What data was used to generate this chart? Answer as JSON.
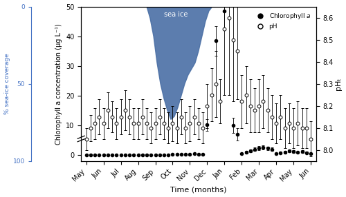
{
  "months": [
    "May",
    "Jun",
    "Jul",
    "Aug",
    "Sep",
    "Oct",
    "Nov",
    "Dec",
    "Jan",
    "Feb",
    "Mar",
    "Apr",
    "May",
    "Jun"
  ],
  "month_x": [
    0,
    1,
    2,
    3,
    4,
    5,
    6,
    7,
    8,
    9,
    10,
    11,
    12,
    13
  ],
  "chl_x": [
    0,
    0.25,
    0.5,
    0.75,
    1.0,
    1.25,
    1.5,
    1.75,
    2.0,
    2.25,
    2.5,
    2.75,
    3.0,
    3.25,
    3.5,
    3.75,
    4.0,
    4.25,
    4.5,
    4.75,
    5.0,
    5.25,
    5.5,
    5.75,
    6.0,
    6.25,
    6.5,
    6.75,
    7.0,
    7.5,
    8.0,
    8.5,
    8.75,
    9.0,
    9.25,
    9.5,
    9.75,
    10.0,
    10.25,
    10.5,
    10.75,
    11.0,
    11.25,
    11.5,
    11.75,
    12.0,
    12.25,
    12.5,
    12.75,
    13.0
  ],
  "chl_y": [
    0.1,
    0.1,
    0.1,
    0.1,
    0.1,
    0.1,
    0.1,
    0.1,
    0.1,
    0.1,
    0.1,
    0.1,
    0.1,
    0.1,
    0.1,
    0.1,
    0.1,
    0.1,
    0.1,
    0.1,
    0.2,
    0.2,
    0.3,
    0.2,
    0.3,
    0.5,
    0.3,
    0.2,
    10.2,
    38.5,
    48.5,
    10.0,
    7.0,
    0.5,
    1.0,
    1.5,
    2.0,
    2.3,
    2.5,
    2.3,
    2.0,
    0.5,
    0.8,
    1.0,
    1.5,
    1.2,
    1.0,
    1.2,
    0.8,
    0.5
  ],
  "chl_err": [
    0.05,
    0.05,
    0.05,
    0.05,
    0.05,
    0.05,
    0.05,
    0.05,
    0.05,
    0.05,
    0.05,
    0.05,
    0.05,
    0.05,
    0.05,
    0.05,
    0.05,
    0.05,
    0.05,
    0.05,
    0.1,
    0.1,
    0.15,
    0.1,
    0.15,
    0.2,
    0.15,
    0.1,
    2.0,
    5.0,
    6.0,
    2.5,
    2.0,
    0.3,
    0.4,
    0.5,
    0.6,
    0.7,
    0.7,
    0.6,
    0.5,
    0.2,
    0.3,
    0.4,
    0.5,
    0.4,
    0.3,
    0.4,
    0.3,
    0.2
  ],
  "ph_x": [
    0,
    0.25,
    0.5,
    0.75,
    1.0,
    1.25,
    1.5,
    1.75,
    2.0,
    2.25,
    2.5,
    2.75,
    3.0,
    3.25,
    3.5,
    3.75,
    4.0,
    4.25,
    4.5,
    4.75,
    5.0,
    5.25,
    5.5,
    5.75,
    6.0,
    6.25,
    6.5,
    6.75,
    7.0,
    7.25,
    7.5,
    7.75,
    8.0,
    8.25,
    8.5,
    8.75,
    9.0,
    9.25,
    9.5,
    9.75,
    10.0,
    10.25,
    10.5,
    10.75,
    11.0,
    11.25,
    11.5,
    11.75,
    12.0,
    12.25,
    12.5,
    12.75,
    13.0
  ],
  "ph_y": [
    8.05,
    8.1,
    8.12,
    8.15,
    8.12,
    8.18,
    8.15,
    8.12,
    8.15,
    8.18,
    8.15,
    8.12,
    8.12,
    8.15,
    8.12,
    8.1,
    8.12,
    8.15,
    8.12,
    8.1,
    8.12,
    8.1,
    8.15,
    8.1,
    8.12,
    8.15,
    8.12,
    8.1,
    8.2,
    8.25,
    8.3,
    8.22,
    8.55,
    8.6,
    8.5,
    8.45,
    8.22,
    8.25,
    8.2,
    8.18,
    8.2,
    8.22,
    8.18,
    8.15,
    8.12,
    8.15,
    8.1,
    8.12,
    8.1,
    8.12,
    8.1,
    8.1,
    8.05
  ],
  "ph_err": [
    0.05,
    0.06,
    0.07,
    0.08,
    0.07,
    0.08,
    0.07,
    0.07,
    0.08,
    0.09,
    0.08,
    0.07,
    0.07,
    0.08,
    0.07,
    0.07,
    0.07,
    0.08,
    0.07,
    0.07,
    0.08,
    0.07,
    0.08,
    0.07,
    0.08,
    0.08,
    0.07,
    0.07,
    0.1,
    0.12,
    0.15,
    0.1,
    0.3,
    0.35,
    0.28,
    0.22,
    0.12,
    0.13,
    0.12,
    0.1,
    0.12,
    0.12,
    0.1,
    0.1,
    0.09,
    0.1,
    0.09,
    0.09,
    0.09,
    0.1,
    0.09,
    0.09,
    0.08
  ],
  "sea_ice_x": [
    3.5,
    3.7,
    3.9,
    4.1,
    4.3,
    4.5,
    4.7,
    4.9,
    5.1,
    5.3,
    5.5,
    5.7,
    5.9,
    6.1,
    6.3,
    6.5,
    6.7,
    6.9,
    7.1,
    7.3,
    7.4
  ],
  "sea_ice_pct": [
    0,
    8,
    20,
    38,
    52,
    62,
    70,
    76,
    74,
    68,
    60,
    52,
    46,
    42,
    38,
    30,
    20,
    10,
    3,
    0,
    0
  ],
  "sea_ice_color": "#4a6fa5",
  "ylim_chl": [
    -2,
    50
  ],
  "ylim_ph": [
    7.95,
    8.65
  ],
  "ph_ticks": [
    8.0,
    8.1,
    8.2,
    8.3,
    8.4,
    8.5,
    8.6
  ],
  "chl_ticks": [
    0,
    10,
    20,
    30,
    40,
    50
  ],
  "left_axis_label": "Chlorophyll a concentration (μg L⁻¹)",
  "right_axis_label": "pHₜ",
  "xlabel": "Time (months)",
  "left_label_blue": "% sea-ice coverage",
  "background_color": "#ffffff"
}
